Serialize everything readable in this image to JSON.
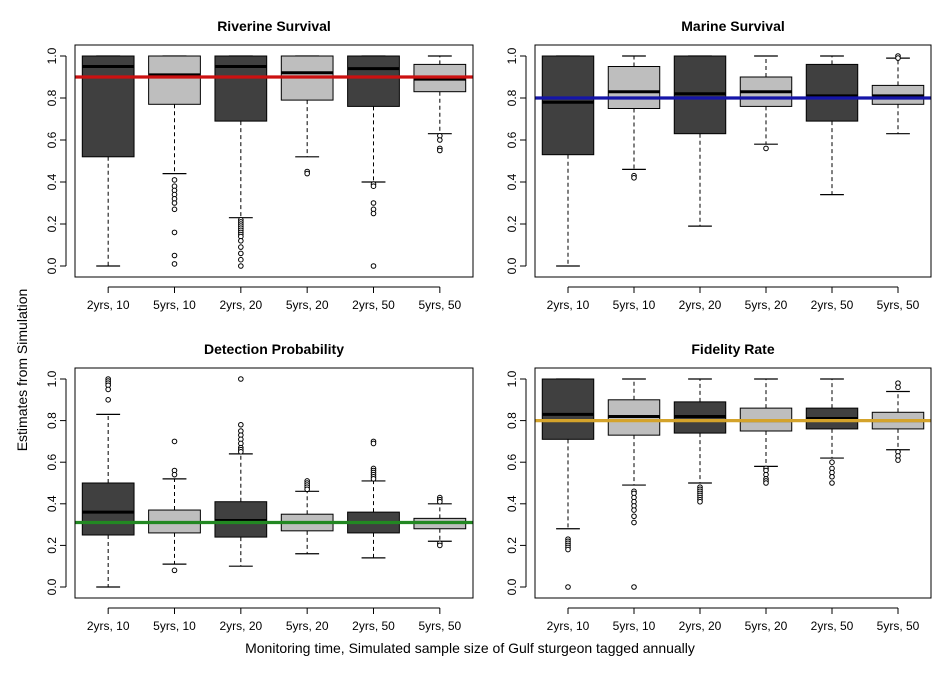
{
  "figure": {
    "ylabel": "Estimates from Simulation",
    "xlabel": "Monitoring time, Simulated sample size of Gulf sturgeon tagged annually"
  },
  "chart_data": [
    {
      "type": "box",
      "title": "Riverine Survival",
      "categories": [
        "2yrs, 10",
        "5yrs, 10",
        "2yrs, 20",
        "5yrs, 20",
        "2yrs, 50",
        "5yrs, 50"
      ],
      "ylim": [
        0,
        1
      ],
      "yticks": [
        "0.0",
        "0.2",
        "0.4",
        "0.6",
        "0.8",
        "1.0"
      ],
      "box_colors": [
        "#404040",
        "#bebebe",
        "#404040",
        "#bebebe",
        "#404040",
        "#bebebe"
      ],
      "reference_line": {
        "value": 0.9,
        "color": "#cc1111"
      },
      "boxes": [
        {
          "low": 0.0,
          "q1": 0.52,
          "median": 0.95,
          "q3": 1.0,
          "high": 1.0,
          "outliers": []
        },
        {
          "low": 0.44,
          "q1": 0.77,
          "median": 0.91,
          "q3": 1.0,
          "high": 1.0,
          "outliers": [
            0.41,
            0.38,
            0.36,
            0.34,
            0.32,
            0.3,
            0.27,
            0.16,
            0.05,
            0.01
          ]
        },
        {
          "low": 0.23,
          "q1": 0.69,
          "median": 0.95,
          "q3": 1.0,
          "high": 1.0,
          "outliers": [
            0.22,
            0.21,
            0.2,
            0.19,
            0.18,
            0.17,
            0.16,
            0.15,
            0.14,
            0.12,
            0.09,
            0.06,
            0.03,
            0.0
          ]
        },
        {
          "low": 0.52,
          "q1": 0.79,
          "median": 0.92,
          "q3": 1.0,
          "high": 1.0,
          "outliers": [
            0.45,
            0.44
          ]
        },
        {
          "low": 0.4,
          "q1": 0.76,
          "median": 0.94,
          "q3": 1.0,
          "high": 1.0,
          "outliers": [
            0.39,
            0.38,
            0.3,
            0.27,
            0.25,
            0.0
          ]
        },
        {
          "low": 0.63,
          "q1": 0.83,
          "median": 0.89,
          "q3": 0.96,
          "high": 1.0,
          "outliers": [
            0.62,
            0.6,
            0.56,
            0.55
          ]
        }
      ]
    },
    {
      "type": "box",
      "title": "Marine Survival",
      "categories": [
        "2yrs, 10",
        "5yrs, 10",
        "2yrs, 20",
        "5yrs, 20",
        "2yrs, 50",
        "5yrs, 50"
      ],
      "ylim": [
        0,
        1
      ],
      "yticks": [
        "0.0",
        "0.2",
        "0.4",
        "0.6",
        "0.8",
        "1.0"
      ],
      "box_colors": [
        "#404040",
        "#bebebe",
        "#404040",
        "#bebebe",
        "#404040",
        "#bebebe"
      ],
      "reference_line": {
        "value": 0.8,
        "color": "#1515a8"
      },
      "boxes": [
        {
          "low": 0.0,
          "q1": 0.53,
          "median": 0.78,
          "q3": 1.0,
          "high": 1.0,
          "outliers": []
        },
        {
          "low": 0.46,
          "q1": 0.75,
          "median": 0.83,
          "q3": 0.95,
          "high": 1.0,
          "outliers": [
            0.43,
            0.42
          ]
        },
        {
          "low": 0.19,
          "q1": 0.63,
          "median": 0.82,
          "q3": 1.0,
          "high": 1.0,
          "outliers": []
        },
        {
          "low": 0.58,
          "q1": 0.76,
          "median": 0.83,
          "q3": 0.9,
          "high": 1.0,
          "outliers": [
            0.56
          ]
        },
        {
          "low": 0.34,
          "q1": 0.69,
          "median": 0.81,
          "q3": 0.96,
          "high": 1.0,
          "outliers": []
        },
        {
          "low": 0.63,
          "q1": 0.77,
          "median": 0.81,
          "q3": 0.86,
          "high": 0.99,
          "outliers": [
            1.0,
            0.99
          ]
        }
      ]
    },
    {
      "type": "box",
      "title": "Detection Probability",
      "categories": [
        "2yrs, 10",
        "5yrs, 10",
        "2yrs, 20",
        "5yrs, 20",
        "2yrs, 50",
        "5yrs, 50"
      ],
      "ylim": [
        0,
        1
      ],
      "yticks": [
        "0.0",
        "0.2",
        "0.4",
        "0.6",
        "0.8",
        "1.0"
      ],
      "box_colors": [
        "#404040",
        "#bebebe",
        "#404040",
        "#bebebe",
        "#404040",
        "#bebebe"
      ],
      "reference_line": {
        "value": 0.31,
        "color": "#228822"
      },
      "boxes": [
        {
          "low": 0.0,
          "q1": 0.25,
          "median": 0.36,
          "q3": 0.5,
          "high": 0.83,
          "outliers": [
            1.0,
            0.99,
            0.98,
            0.97,
            0.95,
            0.9
          ]
        },
        {
          "low": 0.11,
          "q1": 0.26,
          "median": 0.31,
          "q3": 0.37,
          "high": 0.52,
          "outliers": [
            0.7,
            0.56,
            0.54,
            0.08
          ]
        },
        {
          "low": 0.1,
          "q1": 0.24,
          "median": 0.32,
          "q3": 0.41,
          "high": 0.64,
          "outliers": [
            1.0,
            0.78,
            0.75,
            0.73,
            0.71,
            0.69,
            0.67,
            0.66,
            0.65
          ]
        },
        {
          "low": 0.16,
          "q1": 0.27,
          "median": 0.31,
          "q3": 0.35,
          "high": 0.46,
          "outliers": [
            0.51,
            0.5,
            0.49,
            0.48,
            0.47
          ]
        },
        {
          "low": 0.14,
          "q1": 0.26,
          "median": 0.31,
          "q3": 0.36,
          "high": 0.51,
          "outliers": [
            0.7,
            0.69,
            0.57,
            0.56,
            0.55,
            0.54,
            0.53,
            0.52
          ]
        },
        {
          "low": 0.22,
          "q1": 0.28,
          "median": 0.31,
          "q3": 0.33,
          "high": 0.4,
          "outliers": [
            0.43,
            0.42,
            0.41,
            0.21,
            0.2
          ]
        }
      ]
    },
    {
      "type": "box",
      "title": "Fidelity Rate",
      "categories": [
        "2yrs, 10",
        "5yrs, 10",
        "2yrs, 20",
        "5yrs, 20",
        "2yrs, 50",
        "5yrs, 50"
      ],
      "ylim": [
        0,
        1
      ],
      "yticks": [
        "0.0",
        "0.2",
        "0.4",
        "0.6",
        "0.8",
        "1.0"
      ],
      "box_colors": [
        "#404040",
        "#bebebe",
        "#404040",
        "#bebebe",
        "#404040",
        "#bebebe"
      ],
      "reference_line": {
        "value": 0.8,
        "color": "#d4a32b"
      },
      "boxes": [
        {
          "low": 0.28,
          "q1": 0.71,
          "median": 0.83,
          "q3": 1.0,
          "high": 1.0,
          "outliers": [
            0.23,
            0.22,
            0.21,
            0.2,
            0.19,
            0.18,
            0.0
          ]
        },
        {
          "low": 0.49,
          "q1": 0.73,
          "median": 0.82,
          "q3": 0.9,
          "high": 1.0,
          "outliers": [
            0.46,
            0.45,
            0.43,
            0.41,
            0.39,
            0.37,
            0.34,
            0.31,
            0.0
          ]
        },
        {
          "low": 0.5,
          "q1": 0.74,
          "median": 0.82,
          "q3": 0.89,
          "high": 1.0,
          "outliers": [
            0.48,
            0.47,
            0.46,
            0.45,
            0.44,
            0.43,
            0.42,
            0.41
          ]
        },
        {
          "low": 0.58,
          "q1": 0.75,
          "median": 0.8,
          "q3": 0.86,
          "high": 1.0,
          "outliers": [
            0.57,
            0.56,
            0.54,
            0.52,
            0.51,
            0.5
          ]
        },
        {
          "low": 0.62,
          "q1": 0.76,
          "median": 0.81,
          "q3": 0.86,
          "high": 1.0,
          "outliers": [
            0.6,
            0.57,
            0.55,
            0.53,
            0.5
          ]
        },
        {
          "low": 0.66,
          "q1": 0.76,
          "median": 0.8,
          "q3": 0.84,
          "high": 0.94,
          "outliers": [
            0.98,
            0.96,
            0.65,
            0.63,
            0.61
          ]
        }
      ]
    }
  ]
}
